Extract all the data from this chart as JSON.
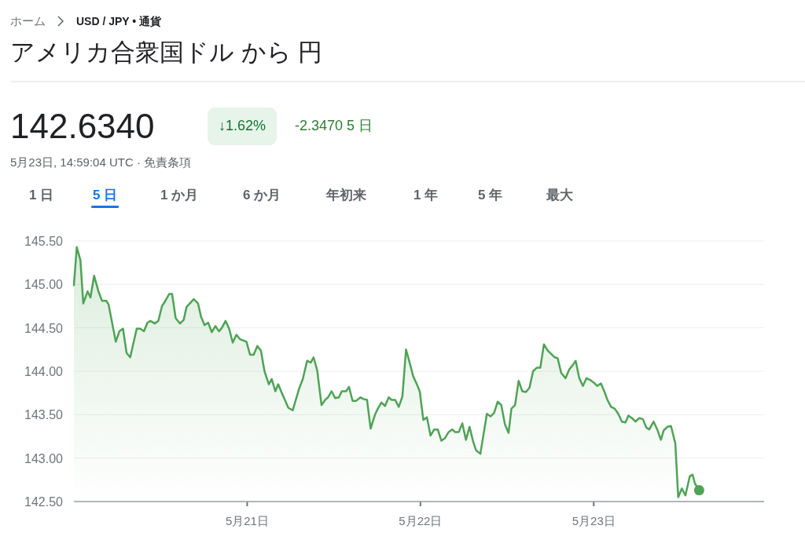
{
  "chart_data": {
    "type": "area",
    "title": "アメリカ合衆国ドル から 円",
    "annotations": [
      "ホーム",
      "USD / JPY • 通貨",
      "142.6340",
      "↓1.62%",
      "-2.3470 5 日",
      "5月23日, 14:59:04 UTC · 免責条項",
      "1 日",
      "5 日",
      "1 か月",
      "6 か月",
      "年初来",
      "1 年",
      "5 年",
      "最大"
    ],
    "xlim": [
      "--05-20T00:00",
      "--05-23T23:36"
    ],
    "xticks": [
      {
        "value": "--05-21",
        "label": "5月21日"
      },
      {
        "value": "--05-22",
        "label": "5月22日"
      },
      {
        "value": "--05-23",
        "label": "5月23日"
      }
    ],
    "ylim": [
      142.5,
      145.5
    ],
    "yticks": [
      {
        "value": 142.5,
        "label": "142.50"
      },
      {
        "value": 143,
        "label": "143.00"
      },
      {
        "value": 143.5,
        "label": "143.50"
      },
      {
        "value": 144,
        "label": "144.00"
      },
      {
        "value": 144.5,
        "label": "144.50"
      },
      {
        "value": 145,
        "label": "145.00"
      },
      {
        "value": 145.5,
        "label": "145.50"
      }
    ],
    "grid": "y",
    "series": [
      {
        "type": "area",
        "color": "#4ea355",
        "x": [
          "--05-20T00:00",
          "--05-20T00:24",
          "--05-20T00:54",
          "--05-20T01:18",
          "--05-20T01:54",
          "--05-20T02:18",
          "--05-20T02:48",
          "--05-20T03:24",
          "--05-20T03:54",
          "--05-20T04:30",
          "--05-20T04:48",
          "--05-20T05:48",
          "--05-20T06:18",
          "--05-20T06:48",
          "--05-20T07:18",
          "--05-20T07:48",
          "--05-20T08:42",
          "--05-20T09:12",
          "--05-20T09:42",
          "--05-20T10:12",
          "--05-20T10:36",
          "--05-20T11:12",
          "--05-20T11:42",
          "--05-20T12:12",
          "--05-20T12:36",
          "--05-20T13:12",
          "--05-20T13:36",
          "--05-20T14:06",
          "--05-20T14:42",
          "--05-20T15:12",
          "--05-20T15:36",
          "--05-20T16:36",
          "--05-20T17:12",
          "--05-20T17:36",
          "--05-20T18:06",
          "--05-20T18:36",
          "--05-20T19:06",
          "--05-20T19:36",
          "--05-20T20:06",
          "--05-20T20:30",
          "--05-20T21:00",
          "--05-20T21:30",
          "--05-20T22:00",
          "--05-20T22:30",
          "--05-20T23:00",
          "--05-20T23:54",
          "--05-21T00:24",
          "--05-21T00:54",
          "--05-21T01:24",
          "--05-21T01:54",
          "--05-21T02:24",
          "--05-21T03:00",
          "--05-21T03:24",
          "--05-21T03:54",
          "--05-21T04:18",
          "--05-21T04:48",
          "--05-21T05:42",
          "--05-21T06:18",
          "--05-21T07:12",
          "--05-21T07:42",
          "--05-21T08:18",
          "--05-21T08:48",
          "--05-21T09:12",
          "--05-21T09:42",
          "--05-21T10:18",
          "--05-21T10:48",
          "--05-21T11:12",
          "--05-21T11:42",
          "--05-21T12:12",
          "--05-21T12:42",
          "--05-21T13:06",
          "--05-21T13:42",
          "--05-21T14:06",
          "--05-21T14:36",
          "--05-21T15:06",
          "--05-21T15:42",
          "--05-21T16:06",
          "--05-21T16:36",
          "--05-21T17:06",
          "--05-21T17:42",
          "--05-21T18:06",
          "--05-21T18:36",
          "--05-21T19:06",
          "--05-21T19:36",
          "--05-21T20:00",
          "--05-21T20:30",
          "--05-21T21:00",
          "--05-21T21:30",
          "--05-21T22:00",
          "--05-21T22:30",
          "--05-21T23:00",
          "--05-21T23:30",
          "--05-21T23:54",
          "--05-22T00:24",
          "--05-22T00:54",
          "--05-22T01:24",
          "--05-22T01:54",
          "--05-22T02:24",
          "--05-22T02:54",
          "--05-22T03:24",
          "--05-22T03:54",
          "--05-22T04:24",
          "--05-22T04:48",
          "--05-22T05:18",
          "--05-22T05:48",
          "--05-22T06:18",
          "--05-22T06:48",
          "--05-22T07:18",
          "--05-22T07:42",
          "--05-22T08:18",
          "--05-22T09:12",
          "--05-22T09:42",
          "--05-22T10:12",
          "--05-22T10:42",
          "--05-22T11:12",
          "--05-22T11:42",
          "--05-22T12:12",
          "--05-22T12:36",
          "--05-22T13:06",
          "--05-22T13:36",
          "--05-22T14:06",
          "--05-22T14:36",
          "--05-22T15:06",
          "--05-22T15:36",
          "--05-22T16:06",
          "--05-22T16:36",
          "--05-22T17:06",
          "--05-22T17:36",
          "--05-22T18:06",
          "--05-22T18:36",
          "--05-22T19:00",
          "--05-22T19:30",
          "--05-22T20:06",
          "--05-22T20:36",
          "--05-22T21:00",
          "--05-22T21:30",
          "--05-22T22:00",
          "--05-22T22:30",
          "--05-22T23:00",
          "--05-22T23:30",
          "--05-23T00:00",
          "--05-23T00:30",
          "--05-23T01:00",
          "--05-23T01:30",
          "--05-23T01:54",
          "--05-23T02:24",
          "--05-23T02:54",
          "--05-23T03:24",
          "--05-23T03:54",
          "--05-23T04:24",
          "--05-23T04:48",
          "--05-23T05:18",
          "--05-23T05:48",
          "--05-23T06:18",
          "--05-23T06:48",
          "--05-23T07:18",
          "--05-23T07:42",
          "--05-23T08:18",
          "--05-23T08:48",
          "--05-23T09:18",
          "--05-23T09:42",
          "--05-23T10:12",
          "--05-23T10:42",
          "--05-23T11:18",
          "--05-23T11:42",
          "--05-23T12:12",
          "--05-23T12:42",
          "--05-23T13:18",
          "--05-23T13:42",
          "--05-23T14:00",
          "--05-23T14:36"
        ],
        "values": [
          144.99,
          145.43,
          145.28,
          144.78,
          144.92,
          144.85,
          145.1,
          144.92,
          144.81,
          144.81,
          144.77,
          144.34,
          144.46,
          144.49,
          144.21,
          144.16,
          144.49,
          144.49,
          144.46,
          144.56,
          144.58,
          144.55,
          144.58,
          144.75,
          144.8,
          144.89,
          144.89,
          144.61,
          144.55,
          144.59,
          144.74,
          144.83,
          144.78,
          144.63,
          144.53,
          144.56,
          144.45,
          144.52,
          144.46,
          144.5,
          144.58,
          144.49,
          144.33,
          144.42,
          144.37,
          144.34,
          144.19,
          144.19,
          144.29,
          144.24,
          144.0,
          143.85,
          143.91,
          143.77,
          143.85,
          143.75,
          143.58,
          143.55,
          143.8,
          143.91,
          144.12,
          144.1,
          144.16,
          144.01,
          143.61,
          143.67,
          143.7,
          143.77,
          143.69,
          143.7,
          143.77,
          143.77,
          143.82,
          143.66,
          143.66,
          143.7,
          143.68,
          143.67,
          143.34,
          143.5,
          143.57,
          143.64,
          143.6,
          143.7,
          143.67,
          143.67,
          143.59,
          143.71,
          144.25,
          144.1,
          143.94,
          143.85,
          143.77,
          143.44,
          143.47,
          143.26,
          143.33,
          143.33,
          143.2,
          143.23,
          143.3,
          143.33,
          143.3,
          143.3,
          143.4,
          143.21,
          143.36,
          143.19,
          143.09,
          143.05,
          143.51,
          143.48,
          143.52,
          143.65,
          143.61,
          143.39,
          143.29,
          143.57,
          143.61,
          143.89,
          143.77,
          143.76,
          143.81,
          144.0,
          144.04,
          144.04,
          144.31,
          144.24,
          144.2,
          144.16,
          144.15,
          143.98,
          143.92,
          144.02,
          144.06,
          144.12,
          143.92,
          143.83,
          143.92,
          143.9,
          143.87,
          143.83,
          143.86,
          143.76,
          143.67,
          143.59,
          143.57,
          143.51,
          143.42,
          143.41,
          143.49,
          143.46,
          143.42,
          143.46,
          143.45,
          143.35,
          143.33,
          143.42,
          143.33,
          143.21,
          143.32,
          143.36,
          143.37,
          143.17,
          142.55,
          142.65,
          142.57,
          142.79,
          142.81,
          142.71,
          142.63
        ]
      },
      {
        "type": "scatter",
        "color": "#4ea355",
        "x": [
          "--05-23T14:36"
        ],
        "values": [
          142.63
        ]
      }
    ]
  }
}
